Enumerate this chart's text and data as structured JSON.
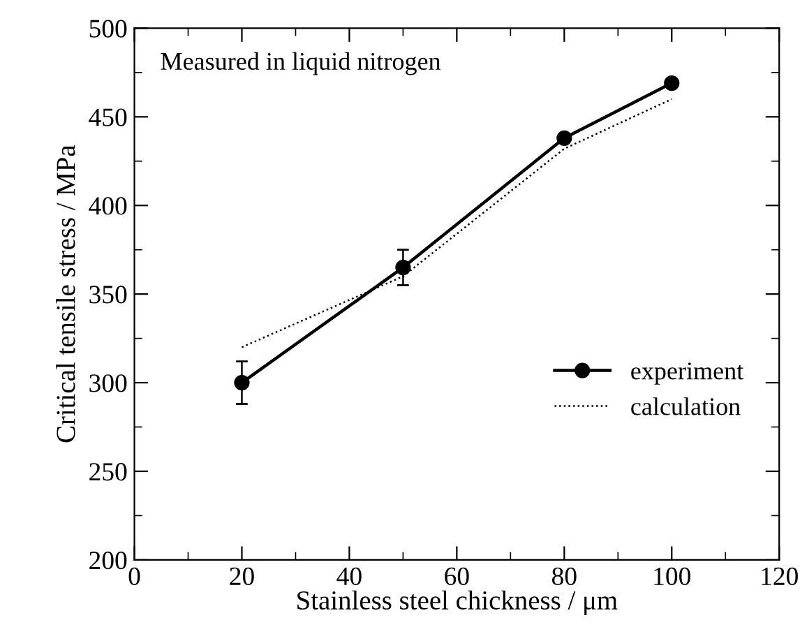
{
  "chart_data": {
    "type": "line",
    "xlabel": "Stainless steel chickness / μm",
    "ylabel": "Critical tensile stress / MPa",
    "annotations": [
      "Measured in liquid nitrogen"
    ],
    "x": [
      20,
      50,
      80,
      100
    ],
    "series": [
      {
        "name": "experiment",
        "color": "#000000",
        "values": [
          300,
          365,
          438,
          469
        ],
        "errors": [
          12,
          10,
          null,
          null
        ],
        "marker": "circle",
        "line_style": "solid"
      },
      {
        "name": "calculation",
        "color": "#000000",
        "values": [
          320,
          360,
          432,
          460
        ],
        "marker": "none",
        "line_style": "dotted"
      }
    ],
    "xlim": [
      0,
      120
    ],
    "xticks": [
      0,
      20,
      40,
      60,
      80,
      100,
      120
    ],
    "ylim": [
      200,
      500
    ],
    "yticks": [
      200,
      250,
      300,
      350,
      400,
      450,
      500
    ],
    "grid": false,
    "legend": "bottom right"
  }
}
